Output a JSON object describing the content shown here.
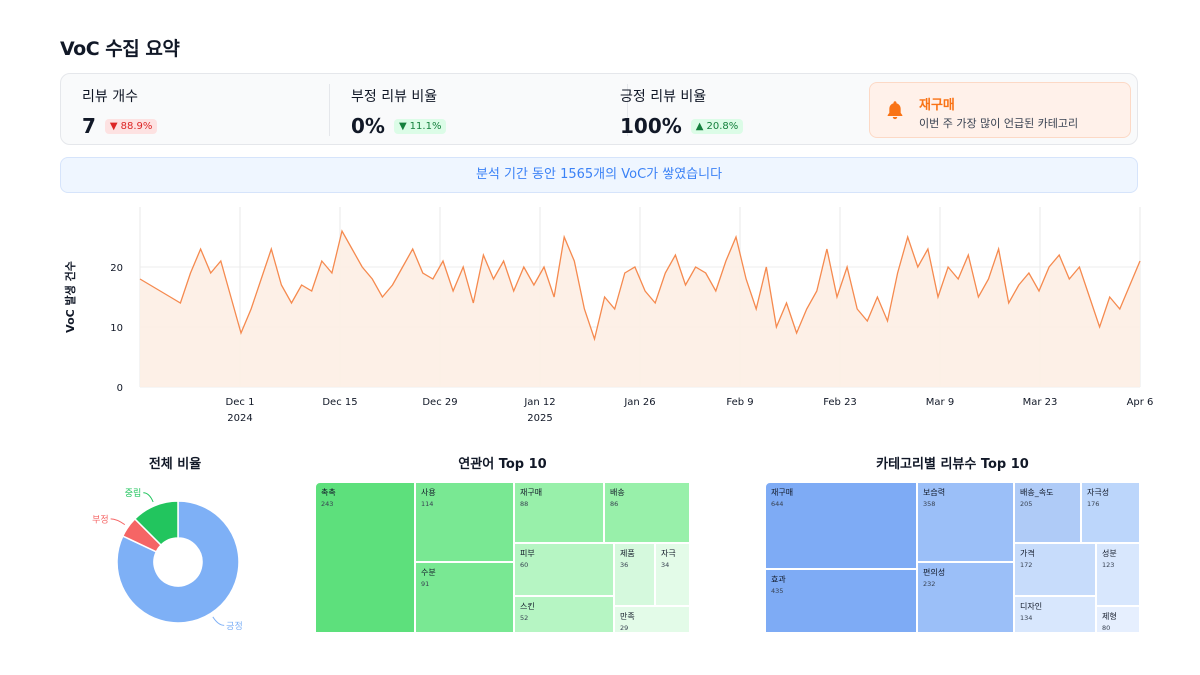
{
  "page": {
    "title": "VoC 수집 요약"
  },
  "kpis": [
    {
      "label": "리뷰 개수",
      "value": "7",
      "change": "88.9%",
      "direction": "down"
    },
    {
      "label": "부정 리뷰 비율",
      "value": "0%",
      "change": "11.1%",
      "direction": "down"
    },
    {
      "label": "긍정 리뷰 비율",
      "value": "100%",
      "change": "20.8%",
      "direction": "up"
    }
  ],
  "alert": {
    "icon": "bell-icon",
    "title": "재구매",
    "subtitle": "이번 주 가장 많이 언급된 카테고리"
  },
  "banner": {
    "text": "분석 기간 동안 1565개의 VoC가 쌓였습니다"
  },
  "colors": {
    "accent": "#f97316",
    "line": "#f58a4f",
    "area": "#fdeee4",
    "positive": "#7eb0f6",
    "negative": "#f56565",
    "neutral": "#22c55e",
    "green_dark": "#5de07c",
    "blue_dark": "#7eabf5"
  },
  "chart_data": [
    {
      "type": "area",
      "ylabel": "VoC 발생 건수",
      "ylim": [
        0,
        30
      ],
      "yticks": [
        0,
        10,
        20
      ],
      "xticks": [
        "Dec 1",
        "Dec 15",
        "Dec 29",
        "Jan 12",
        "Jan 26",
        "Feb 9",
        "Feb 23",
        "Mar 9",
        "Mar 23",
        "Apr 6"
      ],
      "xticks_year": {
        "Dec 1": "2024",
        "Jan 12": "2025"
      },
      "x_start": "2024-11-18",
      "x_end": "2025-04-06",
      "values": [
        18,
        17,
        16,
        15,
        14,
        19,
        23,
        19,
        21,
        15,
        9,
        13,
        18,
        23,
        17,
        14,
        17,
        16,
        21,
        19,
        26,
        23,
        20,
        18,
        15,
        17,
        20,
        23,
        19,
        18,
        21,
        16,
        20,
        14,
        22,
        18,
        21,
        16,
        20,
        17,
        20,
        15,
        25,
        21,
        13,
        8,
        15,
        13,
        19,
        20,
        16,
        14,
        19,
        22,
        17,
        20,
        19,
        16,
        21,
        25,
        18,
        13,
        20,
        10,
        14,
        9,
        13,
        16,
        23,
        15,
        20,
        13,
        11,
        15,
        11,
        19,
        25,
        20,
        23,
        15,
        20,
        18,
        22,
        15,
        18,
        23,
        14,
        17,
        19,
        16,
        20,
        22,
        18,
        20,
        15,
        10,
        15,
        13,
        17,
        21
      ]
    },
    {
      "type": "pie",
      "title": "전체 비율",
      "categories": [
        "긍정",
        "부정",
        "중립"
      ],
      "values": [
        82,
        5.5,
        12.5
      ]
    },
    {
      "type": "treemap",
      "title": "연관어 Top 10",
      "categories": [
        "촉촉",
        "사용",
        "수분",
        "재구매",
        "배송",
        "피부",
        "제품",
        "자극",
        "스킨",
        "만족"
      ],
      "values": [
        243,
        114,
        91,
        88,
        86,
        60,
        36,
        34,
        52,
        29
      ]
    },
    {
      "type": "treemap",
      "title": "카테고리별 리뷰수 Top 10",
      "categories": [
        "재구매",
        "효과",
        "보습력",
        "편의성",
        "배송_속도",
        "자극성",
        "가격",
        "성분",
        "디자인",
        "제형"
      ],
      "values": [
        644,
        435,
        358,
        232,
        205,
        176,
        172,
        123,
        134,
        80
      ]
    }
  ]
}
